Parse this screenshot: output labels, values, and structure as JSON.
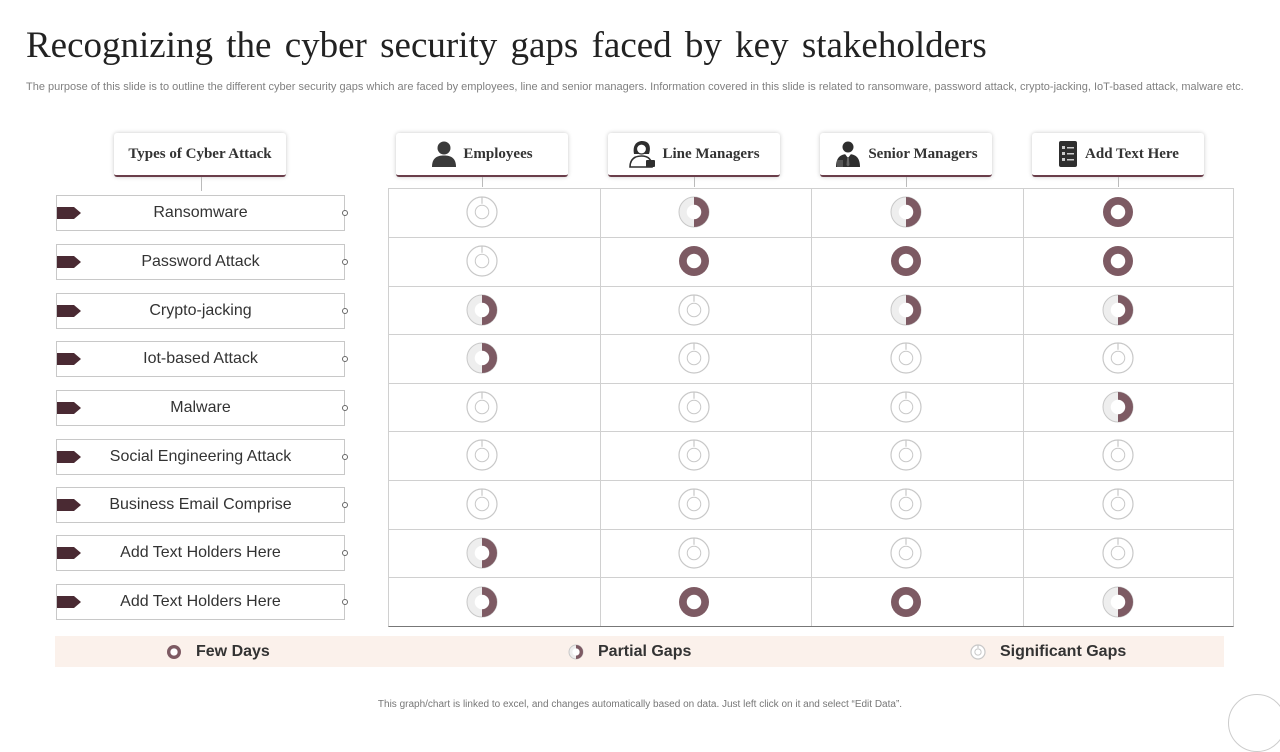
{
  "slide": {
    "title": "Recognizing the cyber security gaps faced by key stakeholders",
    "subtitle": "The purpose of this slide is to outline the different cyber security gaps which are faced by employees, line and senior managers. Information covered in this slide is related to ransomware, password attack, crypto-jacking, IoT-based attack, malware etc.",
    "footer": "This graph/chart is linked to excel, and changes automatically based on data. Just left click on it and select “Edit Data”."
  },
  "table": {
    "row_header": "Types of Cyber Attack",
    "columns": [
      {
        "label": "Employees",
        "icon": "employee-icon"
      },
      {
        "label": "Line Managers",
        "icon": "line-manager-icon"
      },
      {
        "label": "Senior Managers",
        "icon": "senior-manager-icon"
      },
      {
        "label": "Add Text Here",
        "icon": "checklist-icon"
      }
    ],
    "rows": [
      {
        "label": "Ransomware",
        "levels": [
          0,
          0.5,
          0.5,
          1
        ]
      },
      {
        "label": "Password Attack",
        "levels": [
          0,
          1,
          1,
          1
        ]
      },
      {
        "label": "Crypto-jacking",
        "levels": [
          0.5,
          0,
          0.5,
          0.5
        ]
      },
      {
        "label": "Iot-based Attack",
        "levels": [
          0.5,
          0,
          0,
          0
        ]
      },
      {
        "label": "Malware",
        "levels": [
          0,
          0,
          0,
          0.5
        ]
      },
      {
        "label": "Social Engineering Attack",
        "levels": [
          0,
          0,
          0,
          0
        ]
      },
      {
        "label": "Business Email Comprise",
        "levels": [
          0,
          0,
          0,
          0
        ]
      },
      {
        "label": "Add Text Holders Here",
        "levels": [
          0.5,
          0,
          0,
          0
        ]
      },
      {
        "label": "Add Text Holders Here",
        "levels": [
          0.5,
          1,
          1,
          0.5
        ]
      }
    ],
    "level_meaning": {
      "1": "Few Days",
      "0.5": "Partial Gaps",
      "0": "Significant Gaps"
    }
  },
  "legend": {
    "items": [
      {
        "label": "Few Days",
        "level": 1
      },
      {
        "label": "Partial Gaps",
        "level": 0.5
      },
      {
        "label": "Significant Gaps",
        "level": 0
      }
    ]
  },
  "colors": {
    "accent": "#7d5a63",
    "tag": "#4a2a33",
    "ring": "#c8c8c8",
    "legend_bg": "#fbf1eb"
  }
}
